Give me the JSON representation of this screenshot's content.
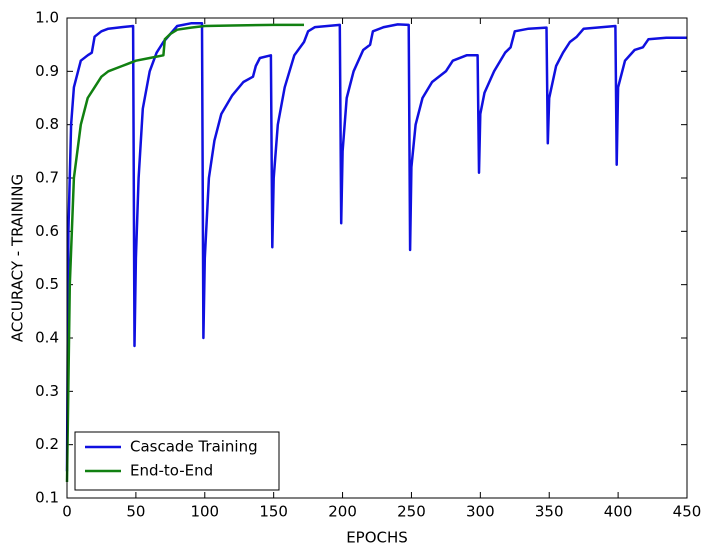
{
  "chart_data": {
    "type": "line",
    "xlabel": "EPOCHS",
    "ylabel": "ACCURACY - TRAINING",
    "xlim": [
      0,
      450
    ],
    "ylim": [
      0.1,
      1
    ],
    "xticks": [
      0,
      50,
      100,
      150,
      200,
      250,
      300,
      350,
      400,
      450
    ],
    "yticks": [
      0.1,
      0.2,
      0.3,
      0.4,
      0.5,
      0.6,
      0.7,
      0.8,
      0.9,
      {
        "value": 1,
        "label": "1.0"
      }
    ],
    "legend": "lower left",
    "series": [
      {
        "name": "Cascade Training",
        "color": "#1010e0",
        "x": [
          0,
          1,
          3,
          5,
          10,
          15,
          18,
          20,
          25,
          30,
          40,
          48,
          49,
          50,
          52,
          55,
          60,
          65,
          70,
          75,
          80,
          90,
          98,
          99,
          100,
          103,
          107,
          112,
          120,
          128,
          135,
          137,
          140,
          148,
          149,
          150,
          153,
          158,
          165,
          172,
          175,
          180,
          198,
          199,
          200,
          203,
          208,
          215,
          220,
          222,
          230,
          240,
          248,
          249,
          250,
          253,
          258,
          265,
          275,
          280,
          290,
          298,
          299,
          300,
          303,
          310,
          318,
          322,
          325,
          335,
          348,
          349,
          350,
          355,
          360,
          365,
          370,
          375,
          398,
          399,
          400,
          405,
          412,
          418,
          422,
          435,
          450
        ],
        "values": [
          0.15,
          0.6,
          0.8,
          0.87,
          0.92,
          0.93,
          0.935,
          0.965,
          0.975,
          0.98,
          0.983,
          0.985,
          0.385,
          0.55,
          0.7,
          0.83,
          0.9,
          0.935,
          0.955,
          0.97,
          0.985,
          0.99,
          0.99,
          0.4,
          0.55,
          0.7,
          0.77,
          0.82,
          0.855,
          0.88,
          0.89,
          0.91,
          0.925,
          0.93,
          0.57,
          0.7,
          0.8,
          0.87,
          0.93,
          0.955,
          0.975,
          0.983,
          0.987,
          0.615,
          0.75,
          0.85,
          0.9,
          0.94,
          0.95,
          0.975,
          0.983,
          0.988,
          0.987,
          0.565,
          0.72,
          0.8,
          0.85,
          0.88,
          0.9,
          0.92,
          0.93,
          0.93,
          0.71,
          0.82,
          0.86,
          0.9,
          0.935,
          0.945,
          0.975,
          0.98,
          0.982,
          0.765,
          0.85,
          0.91,
          0.935,
          0.955,
          0.965,
          0.98,
          0.985,
          0.725,
          0.87,
          0.92,
          0.94,
          0.945,
          0.96,
          0.963,
          0.963
        ]
      },
      {
        "name": "End-to-End",
        "color": "#118011",
        "x": [
          0,
          2,
          5,
          10,
          15,
          20,
          25,
          30,
          40,
          50,
          60,
          70,
          71,
          75,
          80,
          90,
          100,
          120,
          150,
          172
        ],
        "values": [
          0.13,
          0.5,
          0.7,
          0.8,
          0.85,
          0.87,
          0.89,
          0.9,
          0.91,
          0.92,
          0.925,
          0.93,
          0.96,
          0.97,
          0.978,
          0.982,
          0.985,
          0.986,
          0.987,
          0.987
        ]
      }
    ]
  }
}
